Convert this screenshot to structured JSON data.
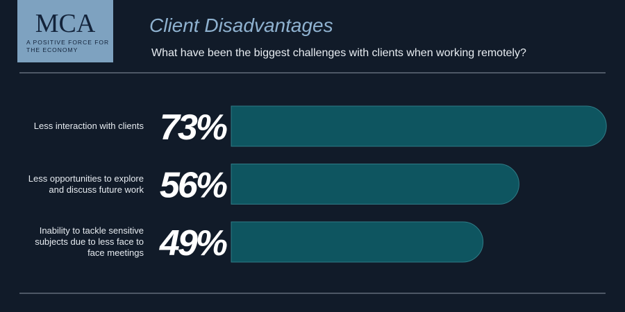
{
  "logo": {
    "name": "MCA",
    "tagline": "A POSITIVE FORCE FOR THE ECONOMY"
  },
  "chart_data": {
    "type": "bar",
    "orientation": "horizontal",
    "title": "Client Disadvantages",
    "subtitle": "What have been the biggest challenges with clients when working remotely?",
    "categories": [
      "Less interaction with clients",
      "Less opportunities to explore and discuss future work",
      "Inability to tackle sensitive subjects due to less face to face meetings"
    ],
    "values": [
      73,
      56,
      49
    ],
    "value_labels": [
      "73%",
      "56%",
      "49%"
    ],
    "color": "#0e5560"
  }
}
